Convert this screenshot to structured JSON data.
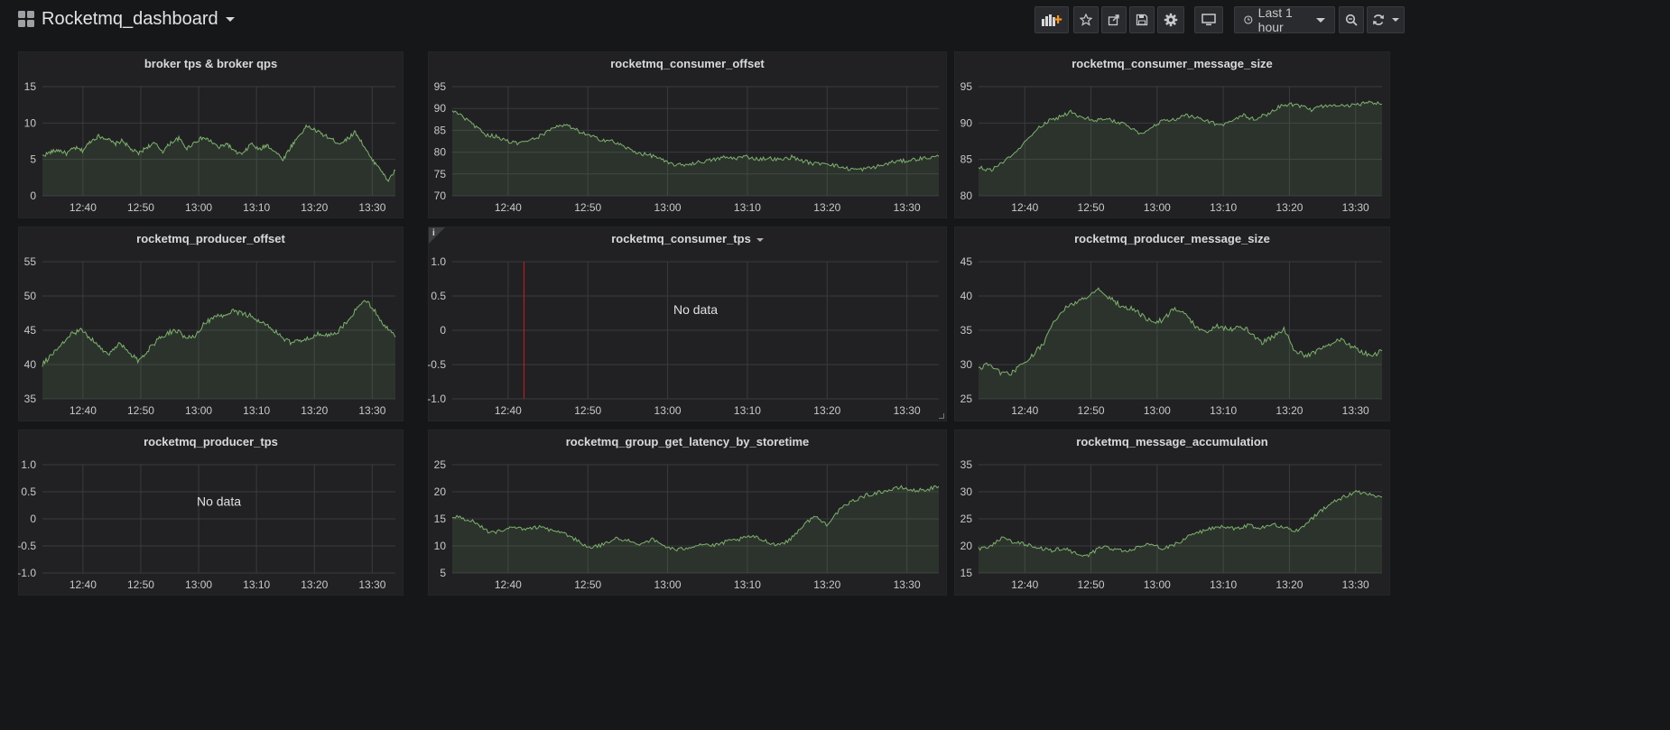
{
  "dashboard": {
    "title": "Rocketmq_dashboard",
    "time_range": "Last 1 hour",
    "toolbar_icons": [
      "add-panel-icon",
      "star-icon",
      "share-icon",
      "save-icon",
      "settings-icon",
      "tv-mode-icon"
    ],
    "accent_color": "#f79520"
  },
  "series_color": "#7eb26d",
  "x_ticks": [
    "12:40",
    "12:50",
    "13:00",
    "13:10",
    "13:20",
    "13:30"
  ],
  "panels": [
    {
      "id": "p1",
      "title": "broker tps & broker qps",
      "has_caret": false,
      "info": false,
      "no_data": false,
      "no_data_text": "",
      "y_ticks": [
        "15",
        "10",
        "5",
        "0"
      ],
      "chart_data": {
        "type": "area",
        "title": "broker tps & broker qps",
        "x_start": "12:33",
        "x_end": "13:34",
        "ylim": [
          0,
          15
        ],
        "values": [
          5.5,
          6,
          6.3,
          5.8,
          6.6,
          6.2,
          7.5,
          8.2,
          7.9,
          7.1,
          7.6,
          6.4,
          5.8,
          6.7,
          7.2,
          6.1,
          7.3,
          7.9,
          6.5,
          7.4,
          8.0,
          7.5,
          6.6,
          7.2,
          6.0,
          5.7,
          7.2,
          6.3,
          7.0,
          6.1,
          5.0,
          6.8,
          8.3,
          9.6,
          9.0,
          8.4,
          7.8,
          7.2,
          7.8,
          8.8,
          7.0,
          5.0,
          4.0,
          2.0,
          3.5
        ]
      }
    },
    {
      "id": "p2",
      "title": "rocketmq_consumer_offset",
      "has_caret": false,
      "info": false,
      "no_data": false,
      "no_data_text": "",
      "y_ticks": [
        "95",
        "90",
        "85",
        "80",
        "75",
        "70"
      ],
      "chart_data": {
        "type": "area",
        "title": "rocketmq_consumer_offset",
        "x_start": "12:33",
        "x_end": "13:34",
        "ylim": [
          70,
          95
        ],
        "values": [
          89.5,
          88,
          86,
          84,
          83.5,
          82.5,
          82,
          82.8,
          84,
          85.5,
          86.2,
          85,
          83.8,
          83,
          82.6,
          81.5,
          80.2,
          79.5,
          79,
          77.5,
          77,
          77.3,
          77.8,
          78.2,
          78.8,
          78.6,
          79,
          78.4,
          78.6,
          78.2,
          78.9,
          78,
          77.3,
          77.6,
          76.8,
          76.2,
          76,
          76.4,
          77,
          77.8,
          78,
          78.4,
          78.7,
          79
        ]
      }
    },
    {
      "id": "p3",
      "title": "rocketmq_consumer_message_size",
      "has_caret": false,
      "info": false,
      "no_data": false,
      "no_data_text": "",
      "y_ticks": [
        "95",
        "90",
        "85",
        "80"
      ],
      "chart_data": {
        "type": "area",
        "title": "rocketmq_consumer_message_size",
        "x_start": "12:33",
        "x_end": "13:34",
        "ylim": [
          80,
          95
        ],
        "values": [
          84,
          83.5,
          84.5,
          85.5,
          87.5,
          89,
          90.2,
          90.8,
          91.5,
          90.8,
          90.4,
          90.6,
          90.1,
          89.6,
          88.5,
          89.4,
          90.3,
          90.5,
          91,
          90.7,
          90.2,
          89.6,
          90.4,
          91,
          90.5,
          91.2,
          92.2,
          92.6,
          92.2,
          91.8,
          92.4,
          92.5,
          92.3,
          92.6,
          92.8,
          92.6
        ]
      }
    },
    {
      "id": "p4",
      "title": "rocketmq_producer_offset",
      "has_caret": false,
      "info": false,
      "no_data": false,
      "no_data_text": "",
      "y_ticks": [
        "55",
        "50",
        "45",
        "40",
        "35"
      ],
      "chart_data": {
        "type": "area",
        "title": "rocketmq_producer_offset",
        "x_start": "12:33",
        "x_end": "13:34",
        "ylim": [
          35,
          55
        ],
        "values": [
          40,
          41.5,
          43,
          44.5,
          45,
          44,
          42.5,
          41.5,
          43,
          42,
          40.5,
          42,
          43.5,
          44.5,
          45,
          44,
          44.3,
          46,
          46.8,
          47.3,
          47.8,
          47.5,
          47,
          46,
          45.4,
          44,
          43.2,
          43.4,
          44,
          44.5,
          44.2,
          44.8,
          46.5,
          48.2,
          49.3,
          47.5,
          45.5,
          44
        ]
      }
    },
    {
      "id": "p5",
      "title": "rocketmq_consumer_tps",
      "has_caret": true,
      "info": true,
      "no_data": true,
      "no_data_text": "No data",
      "y_ticks": [
        "1.0",
        "0.5",
        "0",
        "-0.5",
        "-1.0"
      ],
      "chart_data": {
        "type": "line",
        "title": "rocketmq_consumer_tps",
        "x_start": "12:33",
        "x_end": "13:34",
        "ylim": [
          -1,
          1
        ],
        "values": [],
        "annotation_time": "12:42"
      }
    },
    {
      "id": "p6",
      "title": "rocketmq_producer_message_size",
      "has_caret": false,
      "info": false,
      "no_data": false,
      "no_data_text": "",
      "y_ticks": [
        "45",
        "40",
        "35",
        "30",
        "25"
      ],
      "chart_data": {
        "type": "area",
        "title": "rocketmq_producer_message_size",
        "x_start": "12:33",
        "x_end": "13:34",
        "ylim": [
          25,
          45
        ],
        "values": [
          29.5,
          30,
          28.7,
          28.8,
          30,
          31.5,
          33.2,
          36.5,
          38.2,
          39.2,
          40,
          40.8,
          39.8,
          38.6,
          38.2,
          37.2,
          36,
          36.6,
          38.2,
          37.2,
          35.4,
          35,
          35.6,
          35,
          35.8,
          34.6,
          33.2,
          34,
          35.2,
          32,
          31.2,
          32,
          32.8,
          33.8,
          32.8,
          32,
          31.2,
          32
        ]
      }
    },
    {
      "id": "p7",
      "title": "rocketmq_producer_tps",
      "has_caret": false,
      "info": false,
      "no_data": true,
      "no_data_text": "No data",
      "y_ticks": [
        "1.0",
        "0.5",
        "0",
        "-0.5",
        "-1.0"
      ],
      "chart_data": {
        "type": "line",
        "title": "rocketmq_producer_tps",
        "x_start": "12:33",
        "x_end": "13:34",
        "ylim": [
          -1,
          1
        ],
        "values": []
      }
    },
    {
      "id": "p8",
      "title": "rocketmq_group_get_latency_by_storetime",
      "has_caret": false,
      "info": false,
      "no_data": false,
      "no_data_text": "",
      "y_ticks": [
        "25",
        "20",
        "15",
        "10",
        "5"
      ],
      "chart_data": {
        "type": "area",
        "title": "rocketmq_group_get_latency_by_storetime",
        "x_start": "12:33",
        "x_end": "13:34",
        "ylim": [
          5,
          25
        ],
        "values": [
          15.5,
          15,
          14.2,
          12.5,
          12.8,
          13.4,
          13,
          13.6,
          12.8,
          12.4,
          11,
          9.5,
          10.2,
          11.4,
          11,
          10.4,
          11.2,
          10,
          9.2,
          9.8,
          10.4,
          10,
          10.8,
          11.2,
          11.8,
          11,
          10.2,
          11,
          13.5,
          15.5,
          14,
          16.5,
          18.2,
          19.2,
          19.8,
          20.3,
          20.8,
          20.2,
          20.4,
          21
        ]
      }
    },
    {
      "id": "p9",
      "title": "rocketmq_message_accumulation",
      "has_caret": false,
      "info": false,
      "no_data": false,
      "no_data_text": "",
      "y_ticks": [
        "35",
        "30",
        "25",
        "20",
        "15"
      ],
      "chart_data": {
        "type": "area",
        "title": "rocketmq_message_accumulation",
        "x_start": "12:33",
        "x_end": "13:34",
        "ylim": [
          15,
          35
        ],
        "values": [
          19.5,
          20,
          21.5,
          20.6,
          20.2,
          19.6,
          19.2,
          19.6,
          18.6,
          18.2,
          19.8,
          19.5,
          19.1,
          19.8,
          20.3,
          19.6,
          20.2,
          21.5,
          22.5,
          23.2,
          23.6,
          23.2,
          23.8,
          23.3,
          24.2,
          23.4,
          22.8,
          24.5,
          26.5,
          28,
          29.2,
          30,
          29.5,
          29
        ]
      }
    }
  ]
}
